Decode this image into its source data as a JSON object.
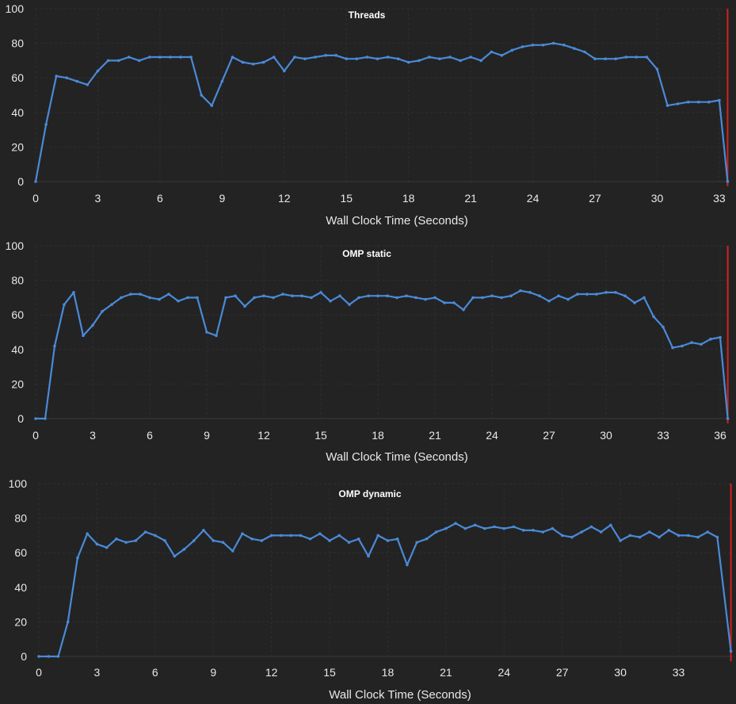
{
  "colors": {
    "series": "#4a8ad8",
    "marker": "#d42020",
    "background": "#232323",
    "text": "#e8e8e8"
  },
  "chart_data": [
    {
      "type": "line",
      "title": "Threads",
      "xlabel": "Wall Clock Time (Seconds)",
      "ylabel": "",
      "xlim": [
        0,
        33.5
      ],
      "ylim": [
        0,
        100
      ],
      "xticks": [
        0,
        3,
        6,
        9,
        12,
        15,
        18,
        21,
        24,
        27,
        30,
        33
      ],
      "yticks": [
        0,
        20,
        40,
        60,
        80,
        100
      ],
      "end_marker_x": 33.4,
      "series": [
        {
          "x": [
            0,
            0.5,
            1,
            1.5,
            2,
            2.5,
            3,
            3.5,
            4,
            4.5,
            5,
            5.5,
            6,
            6.5,
            7,
            7.5,
            8,
            8.5,
            9,
            9.5,
            10,
            10.5,
            11,
            11.5,
            12,
            12.5,
            13,
            13.5,
            14,
            14.5,
            15,
            15.5,
            16,
            16.5,
            17,
            17.5,
            18,
            18.5,
            19,
            19.5,
            20,
            20.5,
            21,
            21.5,
            22,
            22.5,
            23,
            23.5,
            24,
            24.5,
            25,
            25.5,
            26,
            26.5,
            27,
            27.5,
            28,
            28.5,
            29,
            29.5,
            30,
            30.5,
            31,
            31.5,
            32,
            32.5,
            33,
            33.4
          ],
          "y": [
            0,
            33,
            61,
            60,
            58,
            56,
            64,
            70,
            70,
            72,
            70,
            72,
            72,
            72,
            72,
            72,
            50,
            44,
            58,
            72,
            69,
            68,
            69,
            72,
            64,
            72,
            71,
            72,
            73,
            73,
            71,
            71,
            72,
            71,
            72,
            71,
            69,
            70,
            72,
            71,
            72,
            70,
            72,
            70,
            75,
            73,
            76,
            78,
            79,
            79,
            80,
            79,
            77,
            75,
            71,
            71,
            71,
            72,
            72,
            72,
            65,
            44,
            45,
            46,
            46,
            46,
            47,
            0
          ]
        }
      ]
    },
    {
      "type": "line",
      "title": "OMP static",
      "xlabel": "Wall Clock Time (Seconds)",
      "ylabel": "",
      "xlim": [
        0,
        36.5
      ],
      "ylim": [
        0,
        100
      ],
      "xticks": [
        0,
        3,
        6,
        9,
        12,
        15,
        18,
        21,
        24,
        27,
        30,
        33,
        36
      ],
      "yticks": [
        0,
        20,
        40,
        60,
        80,
        100
      ],
      "end_marker_x": 36.4,
      "series": [
        {
          "x": [
            0,
            0.5,
            1,
            1.5,
            2,
            2.5,
            3,
            3.5,
            4,
            4.5,
            5,
            5.5,
            6,
            6.5,
            7,
            7.5,
            8,
            8.5,
            9,
            9.5,
            10,
            10.5,
            11,
            11.5,
            12,
            12.5,
            13,
            13.5,
            14,
            14.5,
            15,
            15.5,
            16,
            16.5,
            17,
            17.5,
            18,
            18.5,
            19,
            19.5,
            20,
            20.5,
            21,
            21.5,
            22,
            22.5,
            23,
            23.5,
            24,
            24.5,
            25,
            25.5,
            26,
            26.5,
            27,
            27.5,
            28,
            28.5,
            29,
            29.5,
            30,
            30.5,
            31,
            31.5,
            32,
            32.5,
            33,
            33.5,
            34,
            34.5,
            35,
            35.5,
            36,
            36.4
          ],
          "y": [
            0,
            0,
            42,
            66,
            73,
            48,
            54,
            62,
            66,
            70,
            72,
            72,
            70,
            69,
            72,
            68,
            70,
            70,
            50,
            48,
            70,
            71,
            65,
            70,
            71,
            70,
            72,
            71,
            71,
            70,
            73,
            68,
            71,
            66,
            70,
            71,
            71,
            71,
            70,
            71,
            70,
            69,
            70,
            67,
            67,
            63,
            70,
            70,
            71,
            70,
            71,
            74,
            73,
            71,
            68,
            71,
            69,
            72,
            72,
            72,
            73,
            73,
            71,
            67,
            70,
            59,
            53,
            41,
            42,
            44,
            43,
            46,
            47,
            0
          ]
        }
      ]
    },
    {
      "type": "line",
      "title": "OMP dynamic",
      "xlabel": "Wall Clock Time (Seconds)",
      "ylabel": "",
      "xlim": [
        0,
        35.8
      ],
      "ylim": [
        0,
        100
      ],
      "xticks": [
        0,
        3,
        6,
        9,
        12,
        15,
        18,
        21,
        24,
        27,
        30,
        33
      ],
      "yticks": [
        0,
        20,
        40,
        60,
        80,
        100
      ],
      "end_marker_x": 35.7,
      "series": [
        {
          "x": [
            0,
            0.5,
            1,
            1.5,
            2,
            2.5,
            3,
            3.5,
            4,
            4.5,
            5,
            5.5,
            6,
            6.5,
            7,
            7.5,
            8,
            8.5,
            9,
            9.5,
            10,
            10.5,
            11,
            11.5,
            12,
            12.5,
            13,
            13.5,
            14,
            14.5,
            15,
            15.5,
            16,
            16.5,
            17,
            17.5,
            18,
            18.5,
            19,
            19.5,
            20,
            20.5,
            21,
            21.5,
            22,
            22.5,
            23,
            23.5,
            24,
            24.5,
            25,
            25.5,
            26,
            26.5,
            27,
            27.5,
            28,
            28.5,
            29,
            29.5,
            30,
            30.5,
            31,
            31.5,
            32,
            32.5,
            33,
            33.5,
            34,
            34.5,
            35,
            35.7
          ],
          "y": [
            0,
            0,
            0,
            20,
            57,
            71,
            65,
            63,
            68,
            66,
            67,
            72,
            70,
            67,
            58,
            62,
            67,
            73,
            67,
            66,
            61,
            71,
            68,
            67,
            70,
            70,
            70,
            70,
            68,
            71,
            67,
            70,
            66,
            68,
            58,
            70,
            67,
            68,
            53,
            66,
            68,
            72,
            74,
            77,
            74,
            76,
            74,
            75,
            74,
            75,
            73,
            73,
            72,
            74,
            70,
            69,
            72,
            75,
            72,
            76,
            67,
            70,
            69,
            72,
            69,
            73,
            70,
            70,
            69,
            72,
            69,
            3
          ]
        }
      ]
    }
  ]
}
